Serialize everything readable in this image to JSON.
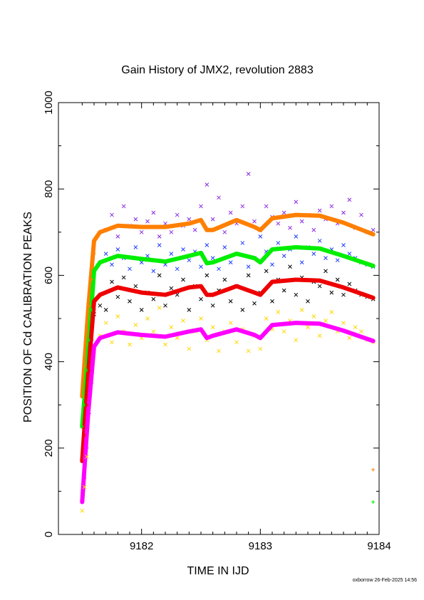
{
  "chart_data": {
    "type": "scatter",
    "title": "Gain History of JMX2, revolution 2883",
    "xlabel": "TIME IN IJD",
    "ylabel": "POSITION OF Cd CALIBRATION PEAKS",
    "xlim": [
      9181.3,
      9184.0
    ],
    "ylim": [
      0,
      1000
    ],
    "x_ticks": [
      9182,
      9183,
      9184
    ],
    "y_ticks": [
      0,
      200,
      400,
      600,
      800,
      1000
    ],
    "footer": "oxborrow 26-Feb-2025 14:56",
    "series": [
      {
        "color": "#ff7f00",
        "marker": "line",
        "x": [
          9181.5,
          9181.55,
          9181.6,
          9181.65,
          9181.8,
          9182.0,
          9182.2,
          9182.4,
          9182.5,
          9182.55,
          9182.6,
          9182.8,
          9182.95,
          9183.0,
          9183.1,
          9183.3,
          9183.5,
          9183.7,
          9183.95
        ],
        "y": [
          320,
          520,
          680,
          700,
          715,
          712,
          712,
          720,
          728,
          705,
          705,
          728,
          712,
          705,
          732,
          740,
          738,
          722,
          695
        ]
      },
      {
        "color": "#00ee00",
        "marker": "line",
        "x": [
          9181.5,
          9181.55,
          9181.6,
          9181.65,
          9181.8,
          9182.0,
          9182.2,
          9182.4,
          9182.5,
          9182.55,
          9182.6,
          9182.8,
          9182.95,
          9183.0,
          9183.1,
          9183.3,
          9183.5,
          9183.7,
          9183.95
        ],
        "y": [
          250,
          420,
          610,
          630,
          645,
          638,
          632,
          645,
          652,
          628,
          630,
          650,
          640,
          630,
          660,
          665,
          662,
          645,
          622
        ]
      },
      {
        "color": "#ee0000",
        "marker": "line",
        "x": [
          9181.5,
          9181.55,
          9181.6,
          9181.65,
          9181.8,
          9182.0,
          9182.2,
          9182.4,
          9182.5,
          9182.55,
          9182.6,
          9182.8,
          9182.95,
          9183.0,
          9183.1,
          9183.3,
          9183.5,
          9183.7,
          9183.95
        ],
        "y": [
          170,
          370,
          540,
          555,
          572,
          560,
          555,
          572,
          575,
          555,
          555,
          575,
          560,
          555,
          585,
          590,
          588,
          572,
          548
        ]
      },
      {
        "color": "#ff00ff",
        "marker": "line",
        "x": [
          9181.5,
          9181.55,
          9181.6,
          9181.65,
          9181.8,
          9182.0,
          9182.2,
          9182.4,
          9182.5,
          9182.55,
          9182.6,
          9182.8,
          9182.95,
          9183.0,
          9183.1,
          9183.3,
          9183.5,
          9183.7,
          9183.95
        ],
        "y": [
          75,
          280,
          435,
          455,
          468,
          462,
          458,
          470,
          475,
          455,
          460,
          475,
          462,
          455,
          485,
          490,
          488,
          472,
          448
        ]
      },
      {
        "color": "#8a2be2",
        "marker": "x",
        "x": [
          9181.7,
          9181.75,
          9181.8,
          9181.85,
          9181.9,
          9181.95,
          9182.0,
          9182.05,
          9182.1,
          9182.15,
          9182.2,
          9182.25,
          9182.3,
          9182.35,
          9182.4,
          9182.45,
          9182.5,
          9182.55,
          9182.6,
          9182.65,
          9182.7,
          9182.75,
          9182.8,
          9182.85,
          9182.9,
          9182.95,
          9183.0,
          9183.05,
          9183.1,
          9183.15,
          9183.2,
          9183.25,
          9183.3,
          9183.35,
          9183.4,
          9183.45,
          9183.5,
          9183.55,
          9183.6,
          9183.65,
          9183.7,
          9183.75,
          9183.8,
          9183.85,
          9183.9,
          9183.95
        ],
        "y": [
          705,
          740,
          690,
          760,
          715,
          730,
          700,
          725,
          745,
          690,
          720,
          700,
          740,
          715,
          730,
          705,
          760,
          810,
          730,
          780,
          700,
          745,
          720,
          760,
          835,
          725,
          705,
          760,
          735,
          720,
          745,
          710,
          770,
          725,
          740,
          705,
          750,
          730,
          760,
          720,
          745,
          775,
          710,
          740,
          700,
          705
        ]
      },
      {
        "color": "#1f3fff",
        "marker": "x",
        "x": [
          9181.7,
          9181.75,
          9181.8,
          9181.85,
          9181.9,
          9181.95,
          9182.0,
          9182.05,
          9182.1,
          9182.15,
          9182.2,
          9182.25,
          9182.3,
          9182.35,
          9182.4,
          9182.45,
          9182.5,
          9182.55,
          9182.6,
          9182.65,
          9182.7,
          9182.75,
          9182.8,
          9182.85,
          9182.9,
          9182.95,
          9183.0,
          9183.05,
          9183.1,
          9183.15,
          9183.2,
          9183.25,
          9183.3,
          9183.35,
          9183.4,
          9183.45,
          9183.5,
          9183.55,
          9183.6,
          9183.65,
          9183.7,
          9183.75,
          9183.8,
          9183.85,
          9183.9,
          9183.95
        ],
        "y": [
          650,
          625,
          660,
          640,
          615,
          665,
          630,
          645,
          610,
          670,
          625,
          650,
          615,
          660,
          635,
          655,
          620,
          670,
          640,
          615,
          665,
          630,
          650,
          675,
          620,
          640,
          690,
          655,
          625,
          675,
          645,
          660,
          690,
          630,
          665,
          650,
          680,
          640,
          660,
          635,
          670,
          650,
          640,
          630,
          625,
          620
        ]
      },
      {
        "color": "#000000",
        "marker": "x",
        "x": [
          9181.6,
          9181.65,
          9181.7,
          9181.75,
          9181.8,
          9181.85,
          9181.9,
          9181.95,
          9182.0,
          9182.05,
          9182.1,
          9182.15,
          9182.2,
          9182.25,
          9182.3,
          9182.35,
          9182.4,
          9182.45,
          9182.5,
          9182.55,
          9182.6,
          9182.65,
          9182.7,
          9182.75,
          9182.8,
          9182.85,
          9182.9,
          9182.95,
          9183.0,
          9183.05,
          9183.1,
          9183.15,
          9183.2,
          9183.25,
          9183.3,
          9183.35,
          9183.4,
          9183.45,
          9183.5,
          9183.55,
          9183.6,
          9183.65,
          9183.7,
          9183.75,
          9183.8,
          9183.85,
          9183.9,
          9183.95
        ],
        "y": [
          510,
          530,
          520,
          585,
          550,
          595,
          540,
          575,
          520,
          560,
          545,
          600,
          530,
          570,
          555,
          590,
          520,
          575,
          545,
          600,
          530,
          565,
          590,
          540,
          575,
          520,
          600,
          535,
          560,
          610,
          540,
          590,
          565,
          620,
          555,
          595,
          540,
          585,
          575,
          610,
          560,
          590,
          555,
          580,
          565,
          555,
          550,
          545
        ]
      },
      {
        "color": "#ffd700",
        "marker": "x",
        "x": [
          9181.6,
          9181.65,
          9181.7,
          9181.75,
          9181.8,
          9181.85,
          9181.9,
          9181.95,
          9182.0,
          9182.05,
          9182.1,
          9182.15,
          9182.2,
          9182.25,
          9182.3,
          9182.35,
          9182.4,
          9182.45,
          9182.5,
          9182.55,
          9182.6,
          9182.65,
          9182.7,
          9182.75,
          9182.8,
          9182.85,
          9182.9,
          9182.95,
          9183.0,
          9183.05,
          9183.1,
          9183.15,
          9183.2,
          9183.25,
          9183.3,
          9183.35,
          9183.4,
          9183.45,
          9183.5,
          9183.55,
          9183.6,
          9183.65,
          9183.7,
          9183.75,
          9183.8,
          9183.85,
          9183.9,
          9183.95
        ],
        "y": [
          430,
          460,
          490,
          445,
          505,
          470,
          440,
          485,
          455,
          500,
          470,
          525,
          440,
          480,
          455,
          495,
          430,
          470,
          500,
          450,
          480,
          425,
          470,
          490,
          445,
          475,
          425,
          460,
          430,
          500,
          475,
          515,
          470,
          495,
          450,
          520,
          480,
          505,
          460,
          495,
          515,
          470,
          490,
          455,
          480,
          470,
          450,
          445
        ]
      },
      {
        "color": "#ff7f00",
        "marker": "plus",
        "x": [
          9181.5,
          9181.52,
          9181.54,
          9181.56,
          9181.58,
          9181.6,
          9183.95
        ],
        "y": [
          320,
          390,
          470,
          530,
          590,
          650,
          150
        ]
      },
      {
        "color": "#00ee00",
        "marker": "plus",
        "x": [
          9181.5,
          9181.52,
          9181.54,
          9181.56,
          9181.58,
          9181.6,
          9183.95
        ],
        "y": [
          250,
          300,
          380,
          450,
          520,
          600,
          75
        ]
      },
      {
        "color": "#ee0000",
        "marker": "plus",
        "x": [
          9181.5,
          9181.52,
          9181.54,
          9181.56,
          9181.58,
          9181.6
        ],
        "y": [
          170,
          230,
          300,
          380,
          450,
          520
        ]
      },
      {
        "color": "#ff00ff",
        "marker": "plus",
        "x": [
          9181.5,
          9181.52,
          9181.54,
          9181.56,
          9181.58,
          9181.6
        ],
        "y": [
          75,
          130,
          200,
          280,
          350,
          420
        ]
      },
      {
        "color": "#ffd700",
        "marker": "x",
        "x": [
          9181.5,
          9181.52,
          9181.54
        ],
        "y": [
          55,
          110,
          180
        ]
      }
    ]
  }
}
